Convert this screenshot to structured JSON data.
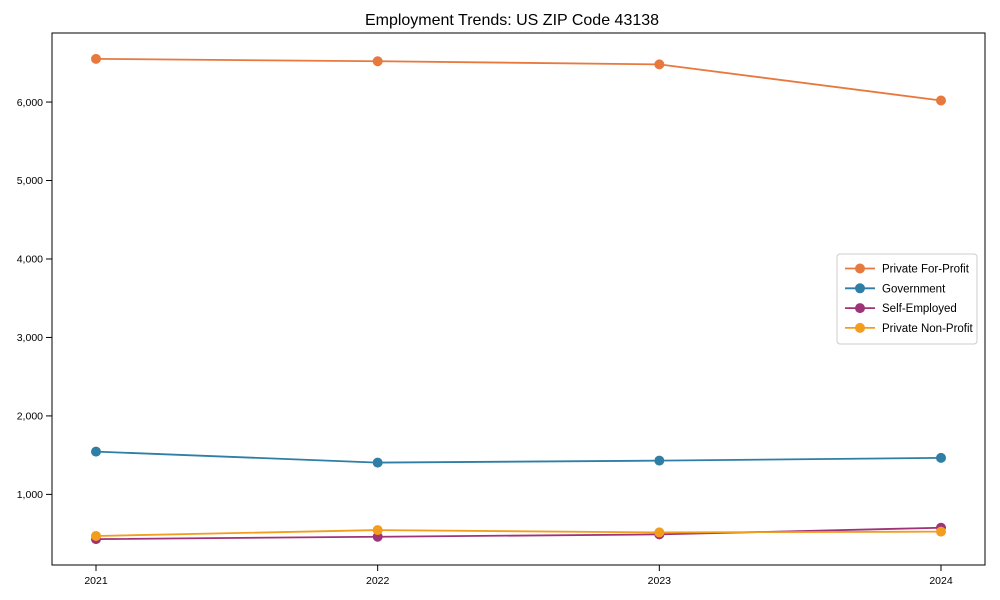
{
  "chart_data": {
    "type": "line",
    "title": "Employment Trends: US ZIP Code 43138",
    "x": [
      "2021",
      "2022",
      "2023",
      "2024"
    ],
    "xlabel": "",
    "ylabel": "",
    "ylim": [
      100,
      6880
    ],
    "yticks": [
      1000,
      2000,
      3000,
      4000,
      5000,
      6000
    ],
    "ytick_labels": [
      "1,000",
      "2,000",
      "3,000",
      "4,000",
      "5,000",
      "6,000"
    ],
    "grid": false,
    "legend_position": "center-right",
    "marker": "circle",
    "series": [
      {
        "name": "Private For-Profit",
        "color": "#E8793E",
        "values": [
          6550,
          6520,
          6480,
          6020
        ]
      },
      {
        "name": "Government",
        "color": "#2E7EA6",
        "values": [
          1545,
          1405,
          1430,
          1465
        ]
      },
      {
        "name": "Self-Employed",
        "color": "#9E3377",
        "values": [
          430,
          460,
          490,
          575
        ]
      },
      {
        "name": "Private Non-Profit",
        "color": "#F29D1E",
        "values": [
          470,
          545,
          515,
          525
        ]
      }
    ],
    "axis_color": "#000000",
    "legend_border_color": "#CCCCCC",
    "background": "#FFFFFF"
  }
}
